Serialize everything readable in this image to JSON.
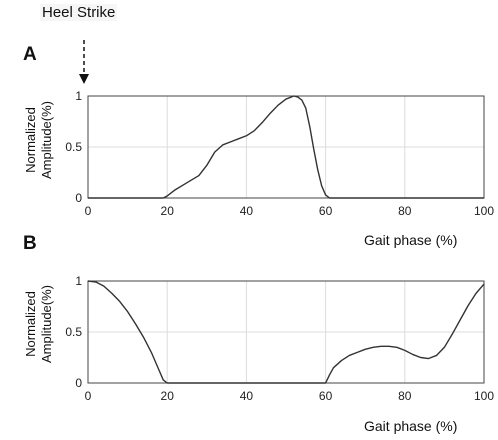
{
  "annotation": {
    "text": "Heel Strike"
  },
  "panel_labels": [
    "A",
    "B"
  ],
  "chart_data": [
    {
      "type": "line",
      "panel": "A",
      "xlabel": "Gait phase (%)",
      "ylabel_line1": "Normalized",
      "ylabel_line2": "Amplitude(%)",
      "xlim": [
        0,
        100
      ],
      "ylim": [
        0,
        1
      ],
      "xticks": [
        "0",
        "20",
        "40",
        "60",
        "80",
        "100"
      ],
      "yticks": [
        "0",
        "0.5",
        "1"
      ],
      "grid": true,
      "x": [
        0,
        19,
        20,
        22,
        25,
        28,
        30,
        32,
        34,
        36,
        38,
        40,
        42,
        44,
        46,
        48,
        50,
        52,
        53,
        54,
        55,
        56,
        57,
        58,
        59,
        60,
        61,
        62,
        70,
        80,
        90,
        100
      ],
      "y": [
        0,
        0,
        0.02,
        0.08,
        0.15,
        0.22,
        0.32,
        0.45,
        0.52,
        0.55,
        0.58,
        0.61,
        0.66,
        0.74,
        0.83,
        0.91,
        0.97,
        1.0,
        0.99,
        0.96,
        0.88,
        0.7,
        0.48,
        0.28,
        0.12,
        0.03,
        0,
        0,
        0,
        0,
        0,
        0
      ]
    },
    {
      "type": "line",
      "panel": "B",
      "xlabel": "Gait phase (%)",
      "ylabel_line1": "Normalized",
      "ylabel_line2": "Amplitude(%)",
      "xlim": [
        0,
        100
      ],
      "ylim": [
        0,
        1
      ],
      "xticks": [
        "0",
        "20",
        "40",
        "60",
        "80",
        "100"
      ],
      "yticks": [
        "0",
        "0.5",
        "1"
      ],
      "grid": true,
      "x": [
        0,
        2,
        4,
        6,
        8,
        10,
        12,
        14,
        16,
        18,
        19,
        20,
        30,
        40,
        50,
        60,
        61,
        62,
        64,
        66,
        68,
        70,
        72,
        74,
        76,
        78,
        80,
        82,
        84,
        86,
        88,
        90,
        92,
        94,
        96,
        98,
        100
      ],
      "y": [
        1.0,
        0.99,
        0.95,
        0.88,
        0.8,
        0.7,
        0.58,
        0.45,
        0.3,
        0.12,
        0.03,
        0,
        0,
        0,
        0,
        0,
        0.08,
        0.15,
        0.22,
        0.27,
        0.3,
        0.33,
        0.35,
        0.36,
        0.36,
        0.35,
        0.32,
        0.28,
        0.25,
        0.24,
        0.27,
        0.35,
        0.48,
        0.62,
        0.76,
        0.88,
        0.97
      ]
    }
  ]
}
